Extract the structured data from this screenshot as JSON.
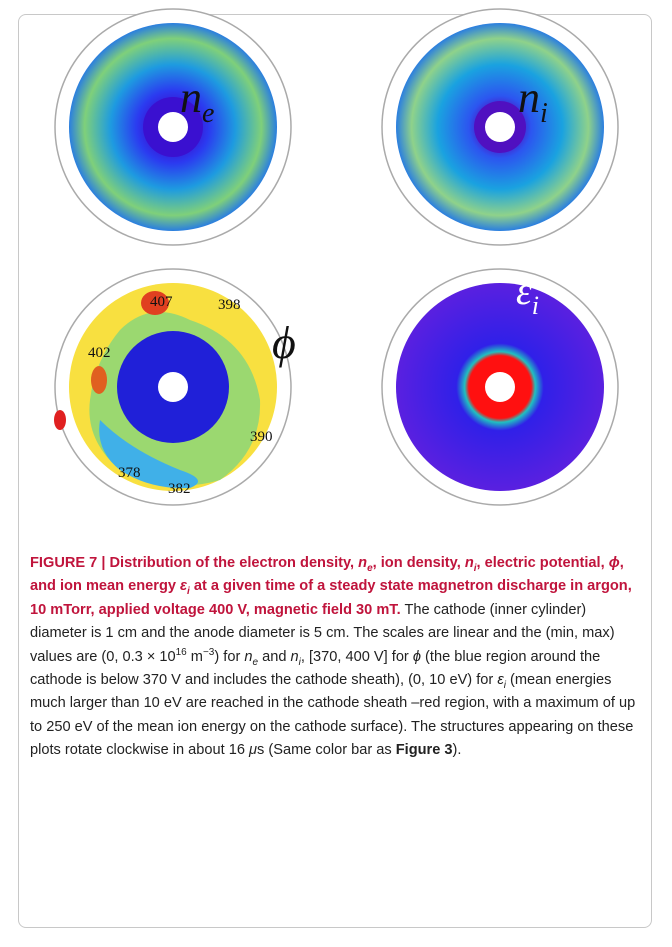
{
  "panels": [
    {
      "symbol": "n",
      "sub": "e"
    },
    {
      "symbol": "n",
      "sub": "i"
    },
    {
      "symbol": "ϕ"
    },
    {
      "symbol": "ε",
      "sub": "i"
    }
  ],
  "contour_labels": [
    "407",
    "398",
    "402",
    "390",
    "378",
    "382"
  ],
  "caption": [
    "FIGURE 7 | Distribution of the electron density, ",
    "n",
    "e",
    ", ion density, ",
    "n",
    "i",
    ", electric potential, ",
    "ϕ",
    ", and ion mean energy ",
    "ε",
    "i",
    " at a given time of a steady state magnetron discharge in argon, 10 mTorr, applied voltage 400 V, magnetic field 30 mT.",
    " The cathode (inner cylinder) diameter is 1 cm and the anode diameter is 5 cm. The scales are linear and the (min, max) values are (0, 0.3 × 10",
    "16",
    " m",
    "−3",
    ") for ",
    "n",
    "e",
    " and ",
    "n",
    "i",
    ", [370, 400 V] for ",
    "ϕ",
    " (the blue region around the cathode is below 370 V and includes the cathode sheath), (0, 10 eV) for ",
    "ε",
    "i",
    " (mean energies much larger than 10 eV are reached in the cathode sheath –red region, with a maximum of up to 250 eV of the mean ion energy on the cathode surface). The structures appearing on these plots rotate clockwise in about 16 ",
    "μ",
    "s (Same color bar as ",
    "Figure 3",
    ")."
  ]
}
